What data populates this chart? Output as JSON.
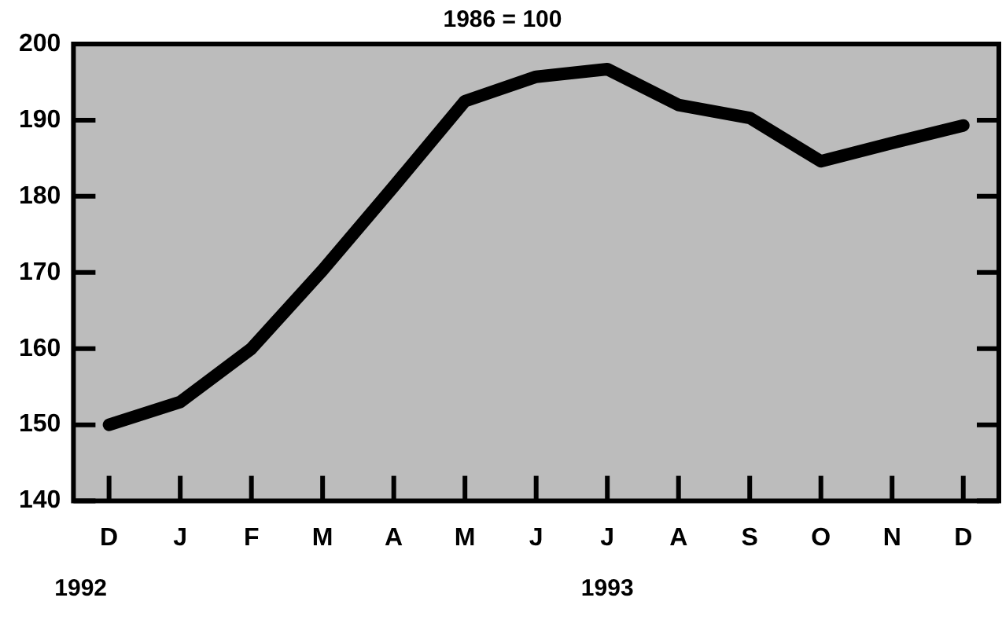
{
  "chart_data": {
    "type": "line",
    "title": "1986 = 100",
    "categories": [
      "D",
      "J",
      "F",
      "M",
      "A",
      "M",
      "J",
      "J",
      "A",
      "S",
      "O",
      "N",
      "D"
    ],
    "series": [
      {
        "color": "#000000",
        "values": [
          150,
          153,
          160,
          170.3,
          181.3,
          192.5,
          195.7,
          196.7,
          192,
          190.3,
          184.6,
          187,
          189.3
        ]
      }
    ],
    "ylim": [
      140,
      200
    ],
    "yticks": [
      140,
      150,
      160,
      170,
      180,
      190,
      200
    ],
    "annotations": [
      "1992",
      "1993"
    ],
    "legend": false,
    "marker": "none",
    "line_style": "solid"
  }
}
